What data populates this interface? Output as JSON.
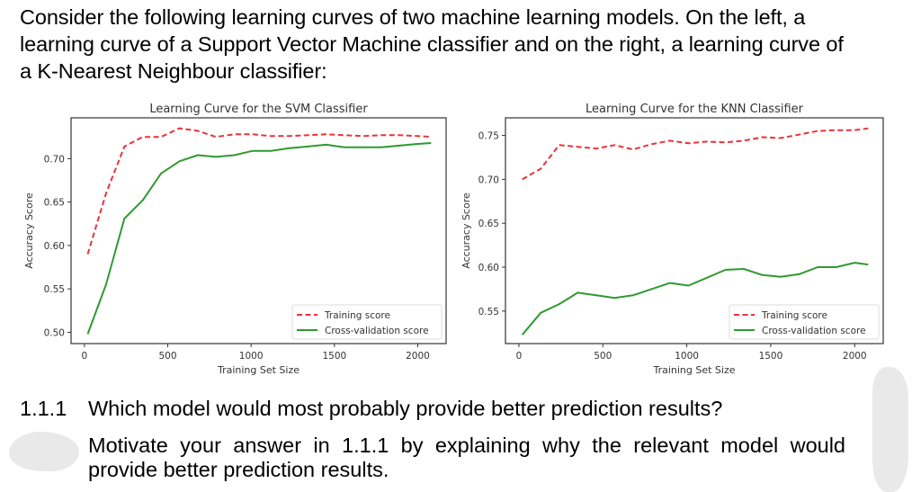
{
  "intro": {
    "text": "Consider the following learning curves of two machine learning models. On the left, a learning curve of a Support Vector Machine classifier and on the right, a learning curve of a K-Nearest Neighbour classifier:"
  },
  "question": {
    "number": "1.1.1",
    "text": "Which model would most probably provide better prediction results?",
    "motivate": "Motivate your answer in 1.1.1 by explaining why the relevant model would provide better prediction results."
  },
  "colors": {
    "training": "#e8333a",
    "cv": "#2f9a2f",
    "axis": "#333333",
    "blob": "#e9e9e9"
  },
  "chart_data": [
    {
      "type": "line",
      "title": "Learning Curve for the SVM Classifier",
      "xlabel": "Training Set Size",
      "ylabel": "Accuracy Score",
      "xlim": [
        -80,
        2170
      ],
      "ylim": [
        0.487,
        0.747
      ],
      "xticks": [
        0,
        500,
        1000,
        1500,
        2000
      ],
      "xtick_labels": [
        "0",
        "500",
        "1000",
        "1500",
        "2000"
      ],
      "yticks": [
        0.5,
        0.55,
        0.6,
        0.65,
        0.7
      ],
      "ytick_labels": [
        "0.50",
        "0.55",
        "0.60",
        "0.65",
        "0.70"
      ],
      "grid": false,
      "legend_position": "lower right",
      "x": [
        20,
        130,
        240,
        350,
        460,
        570,
        680,
        790,
        900,
        1010,
        1120,
        1230,
        1340,
        1450,
        1560,
        1670,
        1780,
        1890,
        2000,
        2080
      ],
      "series": [
        {
          "name": "Training score",
          "style": "dashed",
          "color": "#e8333a",
          "values": [
            0.59,
            0.66,
            0.714,
            0.725,
            0.725,
            0.735,
            0.732,
            0.725,
            0.728,
            0.728,
            0.726,
            0.726,
            0.727,
            0.728,
            0.727,
            0.726,
            0.727,
            0.727,
            0.726,
            0.725
          ]
        },
        {
          "name": "Cross-validation score",
          "style": "solid",
          "color": "#2f9a2f",
          "values": [
            0.498,
            0.555,
            0.631,
            0.652,
            0.683,
            0.697,
            0.704,
            0.702,
            0.704,
            0.709,
            0.709,
            0.712,
            0.714,
            0.716,
            0.713,
            0.713,
            0.713,
            0.715,
            0.717,
            0.718
          ]
        }
      ]
    },
    {
      "type": "line",
      "title": "Learning Curve for the KNN Classifier",
      "xlabel": "Training Set Size",
      "ylabel": "Accuracy Score",
      "xlim": [
        -80,
        2170
      ],
      "ylim": [
        0.513,
        0.77
      ],
      "xticks": [
        0,
        500,
        1000,
        1500,
        2000
      ],
      "xtick_labels": [
        "0",
        "500",
        "1000",
        "1500",
        "2000"
      ],
      "yticks": [
        0.55,
        0.6,
        0.65,
        0.7,
        0.75
      ],
      "ytick_labels": [
        "0.55",
        "0.60",
        "0.65",
        "0.70",
        "0.75"
      ],
      "grid": false,
      "legend_position": "lower right",
      "x": [
        20,
        130,
        240,
        350,
        460,
        570,
        680,
        790,
        900,
        1010,
        1120,
        1230,
        1340,
        1450,
        1560,
        1670,
        1780,
        1890,
        2000,
        2080
      ],
      "series": [
        {
          "name": "Training score",
          "style": "dashed",
          "color": "#e8333a",
          "values": [
            0.7,
            0.712,
            0.739,
            0.737,
            0.735,
            0.739,
            0.734,
            0.74,
            0.744,
            0.741,
            0.743,
            0.742,
            0.744,
            0.748,
            0.747,
            0.751,
            0.755,
            0.756,
            0.756,
            0.758
          ]
        },
        {
          "name": "Cross-validation score",
          "style": "solid",
          "color": "#2f9a2f",
          "values": [
            0.523,
            0.548,
            0.558,
            0.571,
            0.568,
            0.565,
            0.568,
            0.575,
            0.582,
            0.579,
            0.588,
            0.597,
            0.598,
            0.591,
            0.589,
            0.592,
            0.6,
            0.6,
            0.605,
            0.603
          ]
        }
      ]
    }
  ]
}
